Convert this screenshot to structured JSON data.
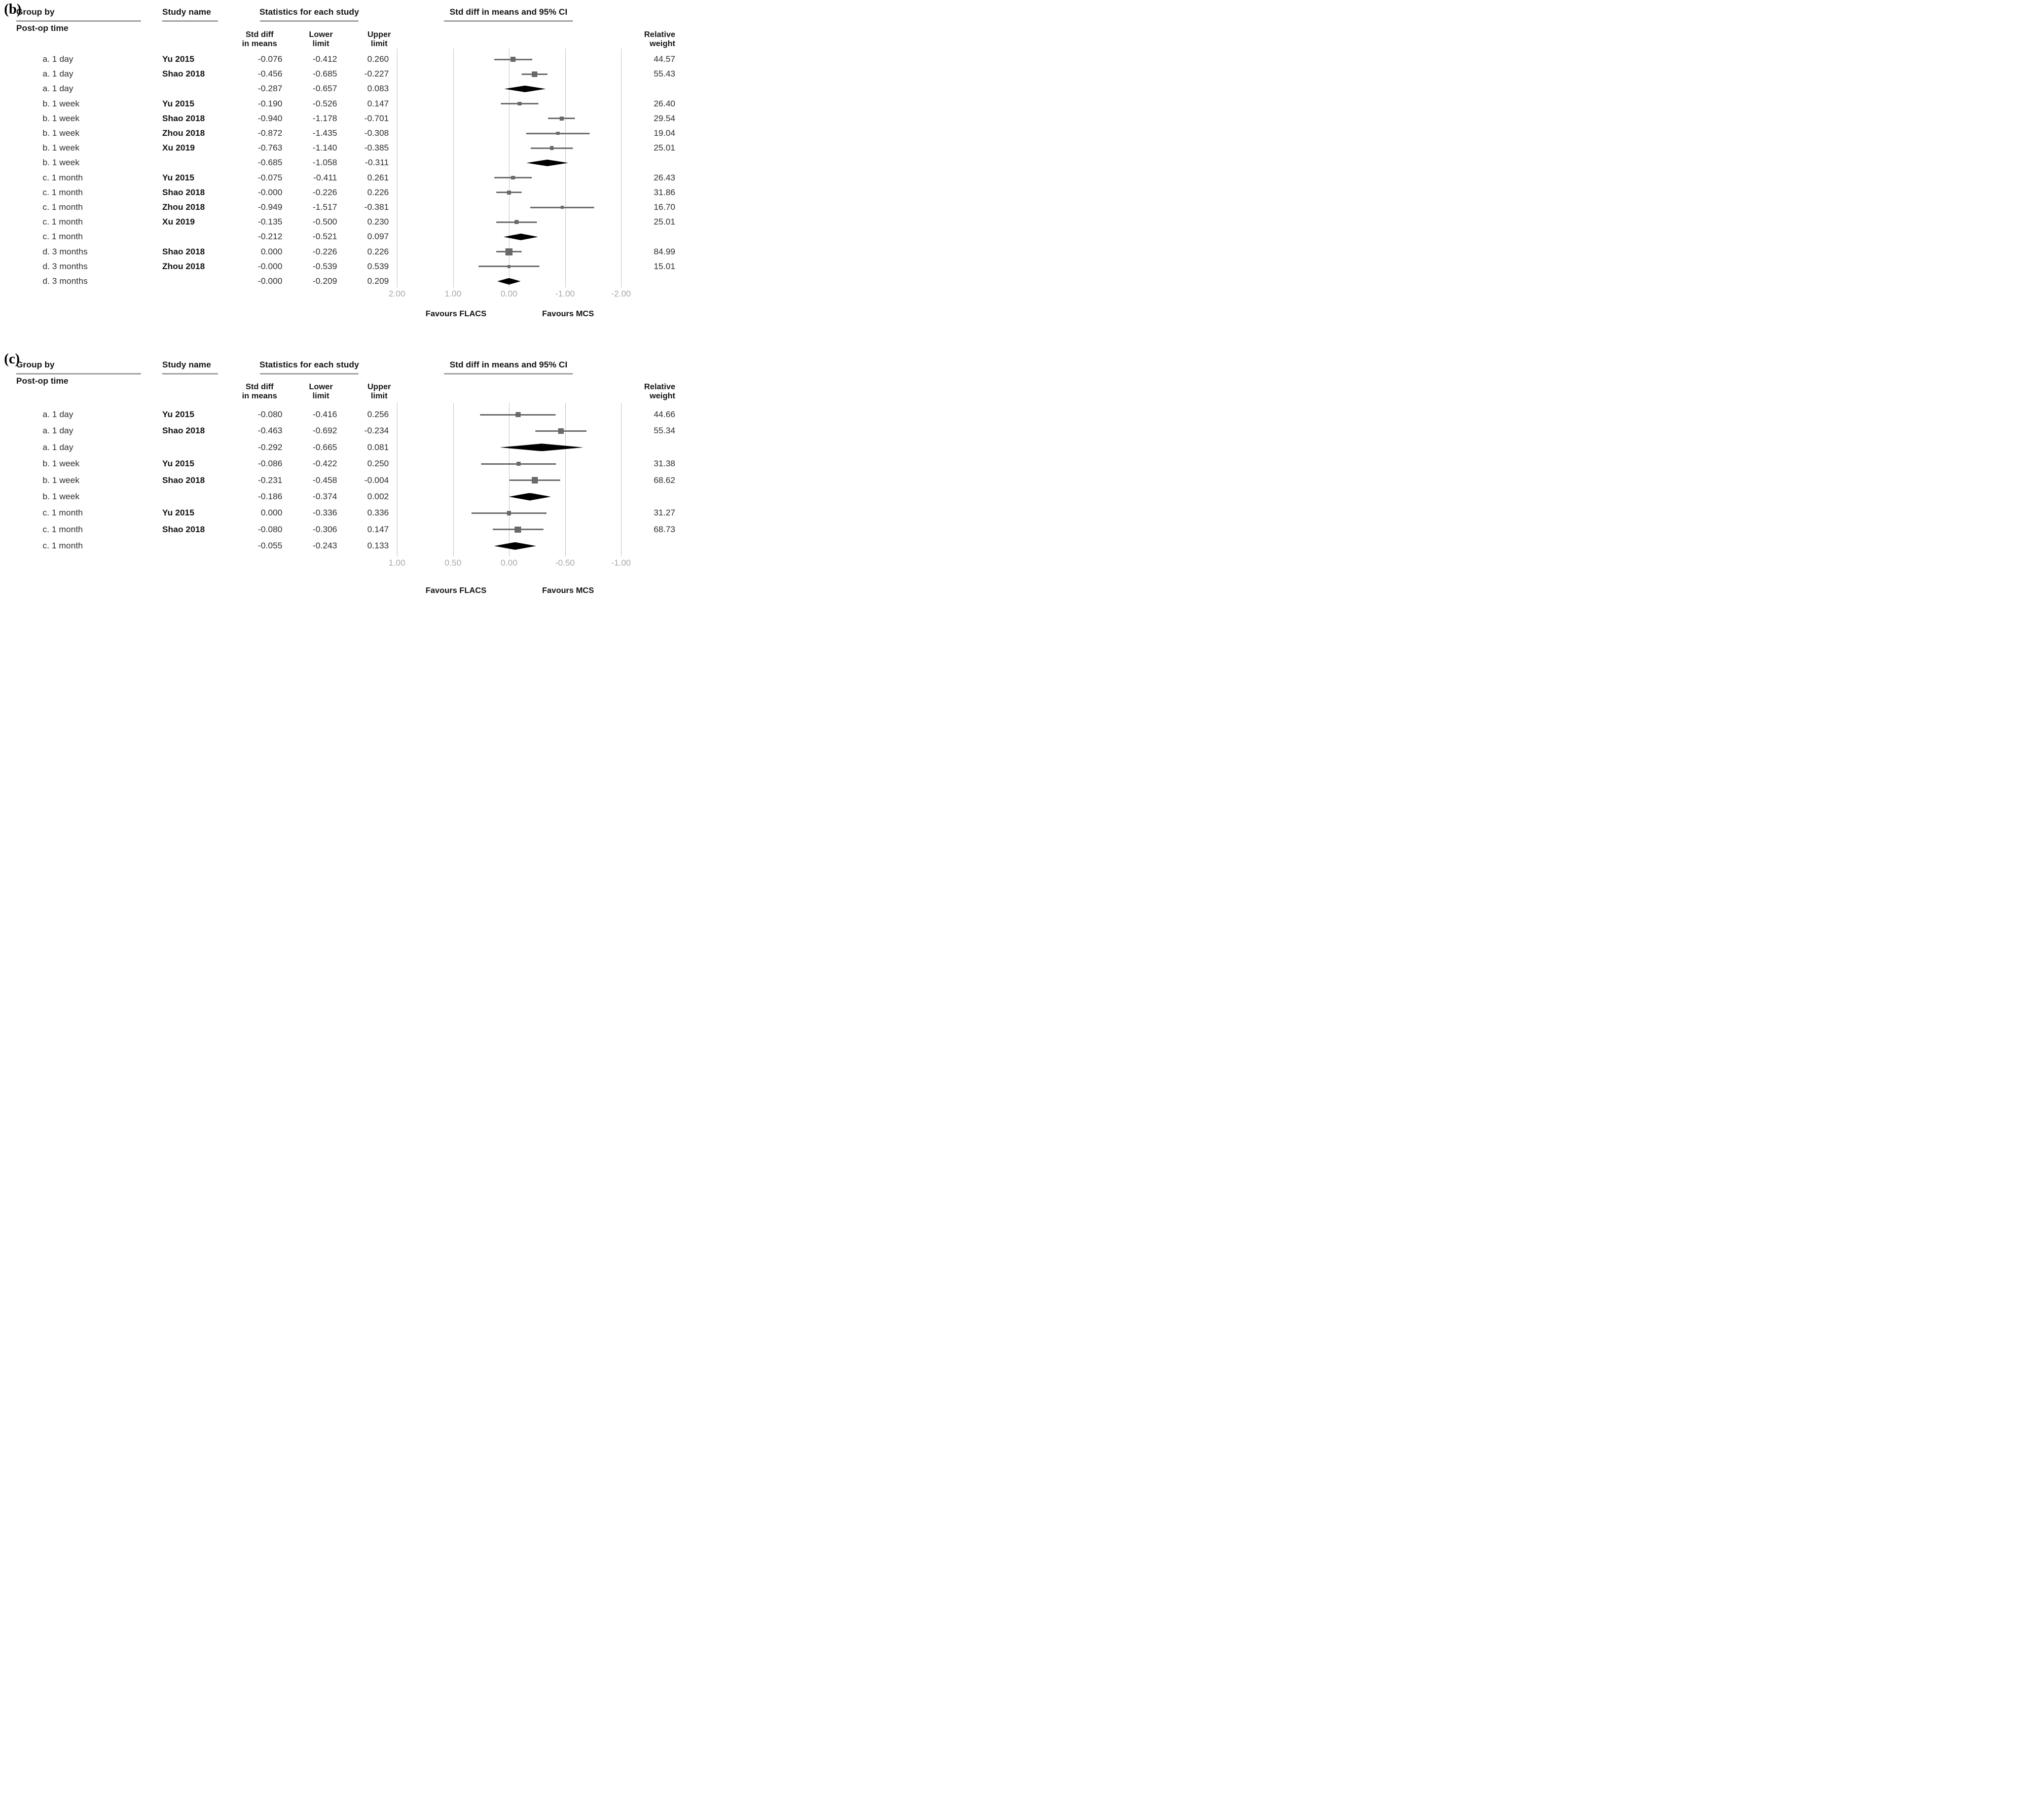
{
  "headers": {
    "group_by": "Group by",
    "group_by_sub": "Post-op time",
    "study_name": "Study name",
    "stats": "Statistics for each study",
    "std_diff_line1": "Std diff",
    "std_diff_line2": "in means",
    "lower_line1": "Lower",
    "lower_line2": "limit",
    "upper_line1": "Upper",
    "upper_line2": "limit",
    "ci": "Std diff in means and 95% CI",
    "weight_line1": "Relative",
    "weight_line2": "weight"
  },
  "panels": [
    {
      "id": "b",
      "label": "(b)",
      "axis": {
        "ticks": [
          "2.00",
          "1.00",
          "0.00",
          "-1.00",
          "-2.00"
        ],
        "favours_left": "Favours FLACS",
        "favours_right": "Favours MCS"
      },
      "rows": [
        {
          "group": "a. 1 day",
          "study": "Yu 2015",
          "std": "-0.076",
          "lower": "-0.412",
          "upper": "0.260",
          "weight": "44.57",
          "type": "study"
        },
        {
          "group": "a. 1 day",
          "study": "Shao 2018",
          "std": "-0.456",
          "lower": "-0.685",
          "upper": "-0.227",
          "weight": "55.43",
          "type": "study"
        },
        {
          "group": "a. 1 day",
          "study": "",
          "std": "-0.287",
          "lower": "-0.657",
          "upper": "0.083",
          "weight": "",
          "type": "summary"
        },
        {
          "group": "b. 1 week",
          "study": "Yu 2015",
          "std": "-0.190",
          "lower": "-0.526",
          "upper": "0.147",
          "weight": "26.40",
          "type": "study"
        },
        {
          "group": "b. 1 week",
          "study": "Shao 2018",
          "std": "-0.940",
          "lower": "-1.178",
          "upper": "-0.701",
          "weight": "29.54",
          "type": "study"
        },
        {
          "group": "b. 1 week",
          "study": "Zhou 2018",
          "std": "-0.872",
          "lower": "-1.435",
          "upper": "-0.308",
          "weight": "19.04",
          "type": "study"
        },
        {
          "group": "b. 1 week",
          "study": "Xu 2019",
          "std": "-0.763",
          "lower": "-1.140",
          "upper": "-0.385",
          "weight": "25.01",
          "type": "study"
        },
        {
          "group": "b. 1 week",
          "study": "",
          "std": "-0.685",
          "lower": "-1.058",
          "upper": "-0.311",
          "weight": "",
          "type": "summary"
        },
        {
          "group": "c. 1 month",
          "study": "Yu 2015",
          "std": "-0.075",
          "lower": "-0.411",
          "upper": "0.261",
          "weight": "26.43",
          "type": "study"
        },
        {
          "group": "c. 1 month",
          "study": "Shao 2018",
          "std": "-0.000",
          "lower": "-0.226",
          "upper": "0.226",
          "weight": "31.86",
          "type": "study"
        },
        {
          "group": "c. 1 month",
          "study": "Zhou 2018",
          "std": "-0.949",
          "lower": "-1.517",
          "upper": "-0.381",
          "weight": "16.70",
          "type": "study"
        },
        {
          "group": "c. 1 month",
          "study": "Xu 2019",
          "std": "-0.135",
          "lower": "-0.500",
          "upper": "0.230",
          "weight": "25.01",
          "type": "study"
        },
        {
          "group": "c. 1 month",
          "study": "",
          "std": "-0.212",
          "lower": "-0.521",
          "upper": "0.097",
          "weight": "",
          "type": "summary"
        },
        {
          "group": "d. 3 months",
          "study": "Shao 2018",
          "std": "0.000",
          "lower": "-0.226",
          "upper": "0.226",
          "weight": "84.99",
          "type": "study"
        },
        {
          "group": "d. 3 months",
          "study": "Zhou 2018",
          "std": "-0.000",
          "lower": "-0.539",
          "upper": "0.539",
          "weight": "15.01",
          "type": "study"
        },
        {
          "group": "d. 3 months",
          "study": "",
          "std": "-0.000",
          "lower": "-0.209",
          "upper": "0.209",
          "weight": "",
          "type": "summary"
        }
      ]
    },
    {
      "id": "c",
      "label": "(c)",
      "axis": {
        "ticks": [
          "1.00",
          "0.50",
          "0.00",
          "-0.50",
          "-1.00"
        ],
        "favours_left": "Favours FLACS",
        "favours_right": "Favours MCS"
      },
      "rows": [
        {
          "group": "a. 1 day",
          "study": "Yu 2015",
          "std": "-0.080",
          "lower": "-0.416",
          "upper": "0.256",
          "weight": "44.66",
          "type": "study"
        },
        {
          "group": "a. 1 day",
          "study": "Shao 2018",
          "std": "-0.463",
          "lower": "-0.692",
          "upper": "-0.234",
          "weight": "55.34",
          "type": "study"
        },
        {
          "group": "a. 1 day",
          "study": "",
          "std": "-0.292",
          "lower": "-0.665",
          "upper": "0.081",
          "weight": "",
          "type": "summary"
        },
        {
          "group": "b. 1 week",
          "study": "Yu 2015",
          "std": "-0.086",
          "lower": "-0.422",
          "upper": "0.250",
          "weight": "31.38",
          "type": "study"
        },
        {
          "group": "b. 1 week",
          "study": "Shao 2018",
          "std": "-0.231",
          "lower": "-0.458",
          "upper": "-0.004",
          "weight": "68.62",
          "type": "study"
        },
        {
          "group": "b. 1 week",
          "study": "",
          "std": "-0.186",
          "lower": "-0.374",
          "upper": "0.002",
          "weight": "",
          "type": "summary"
        },
        {
          "group": "c. 1 month",
          "study": "Yu 2015",
          "std": "0.000",
          "lower": "-0.336",
          "upper": "0.336",
          "weight": "31.27",
          "type": "study"
        },
        {
          "group": "c. 1 month",
          "study": "Shao 2018",
          "std": "-0.080",
          "lower": "-0.306",
          "upper": "0.147",
          "weight": "68.73",
          "type": "study"
        },
        {
          "group": "c. 1 month",
          "study": "",
          "std": "-0.055",
          "lower": "-0.243",
          "upper": "0.133",
          "weight": "",
          "type": "summary"
        }
      ]
    }
  ],
  "chart_data": [
    {
      "type": "scatter",
      "subtype": "forest-plot",
      "title": "Std diff in means and 95% CI",
      "group_by": "Post-op time",
      "x_axis_reversed": true,
      "xlim": [
        2.0,
        -2.0
      ],
      "x_ticks": [
        2.0,
        1.0,
        0.0,
        -1.0,
        -2.0
      ],
      "favours": {
        "left": "Favours FLACS",
        "right": "Favours MCS"
      },
      "series": [
        {
          "group": "a. 1 day",
          "study": "Yu 2015",
          "std_diff": -0.076,
          "lower": -0.412,
          "upper": 0.26,
          "relative_weight": 44.57,
          "summary": false
        },
        {
          "group": "a. 1 day",
          "study": "Shao 2018",
          "std_diff": -0.456,
          "lower": -0.685,
          "upper": -0.227,
          "relative_weight": 55.43,
          "summary": false
        },
        {
          "group": "a. 1 day",
          "study": null,
          "std_diff": -0.287,
          "lower": -0.657,
          "upper": 0.083,
          "relative_weight": null,
          "summary": true
        },
        {
          "group": "b. 1 week",
          "study": "Yu 2015",
          "std_diff": -0.19,
          "lower": -0.526,
          "upper": 0.147,
          "relative_weight": 26.4,
          "summary": false
        },
        {
          "group": "b. 1 week",
          "study": "Shao 2018",
          "std_diff": -0.94,
          "lower": -1.178,
          "upper": -0.701,
          "relative_weight": 29.54,
          "summary": false
        },
        {
          "group": "b. 1 week",
          "study": "Zhou 2018",
          "std_diff": -0.872,
          "lower": -1.435,
          "upper": -0.308,
          "relative_weight": 19.04,
          "summary": false
        },
        {
          "group": "b. 1 week",
          "study": "Xu 2019",
          "std_diff": -0.763,
          "lower": -1.14,
          "upper": -0.385,
          "relative_weight": 25.01,
          "summary": false
        },
        {
          "group": "b. 1 week",
          "study": null,
          "std_diff": -0.685,
          "lower": -1.058,
          "upper": -0.311,
          "relative_weight": null,
          "summary": true
        },
        {
          "group": "c. 1 month",
          "study": "Yu 2015",
          "std_diff": -0.075,
          "lower": -0.411,
          "upper": 0.261,
          "relative_weight": 26.43,
          "summary": false
        },
        {
          "group": "c. 1 month",
          "study": "Shao 2018",
          "std_diff": -0.0,
          "lower": -0.226,
          "upper": 0.226,
          "relative_weight": 31.86,
          "summary": false
        },
        {
          "group": "c. 1 month",
          "study": "Zhou 2018",
          "std_diff": -0.949,
          "lower": -1.517,
          "upper": -0.381,
          "relative_weight": 16.7,
          "summary": false
        },
        {
          "group": "c. 1 month",
          "study": "Xu 2019",
          "std_diff": -0.135,
          "lower": -0.5,
          "upper": 0.23,
          "relative_weight": 25.01,
          "summary": false
        },
        {
          "group": "c. 1 month",
          "study": null,
          "std_diff": -0.212,
          "lower": -0.521,
          "upper": 0.097,
          "relative_weight": null,
          "summary": true
        },
        {
          "group": "d. 3 months",
          "study": "Shao 2018",
          "std_diff": 0.0,
          "lower": -0.226,
          "upper": 0.226,
          "relative_weight": 84.99,
          "summary": false
        },
        {
          "group": "d. 3 months",
          "study": "Zhou 2018",
          "std_diff": -0.0,
          "lower": -0.539,
          "upper": 0.539,
          "relative_weight": 15.01,
          "summary": false
        },
        {
          "group": "d. 3 months",
          "study": null,
          "std_diff": -0.0,
          "lower": -0.209,
          "upper": 0.209,
          "relative_weight": null,
          "summary": true
        }
      ]
    },
    {
      "type": "scatter",
      "subtype": "forest-plot",
      "title": "Std diff in means and 95% CI",
      "group_by": "Post-op time",
      "x_axis_reversed": true,
      "xlim": [
        1.0,
        -1.0
      ],
      "x_ticks": [
        1.0,
        0.5,
        0.0,
        -0.5,
        -1.0
      ],
      "favours": {
        "left": "Favours FLACS",
        "right": "Favours MCS"
      },
      "series": [
        {
          "group": "a. 1 day",
          "study": "Yu 2015",
          "std_diff": -0.08,
          "lower": -0.416,
          "upper": 0.256,
          "relative_weight": 44.66,
          "summary": false
        },
        {
          "group": "a. 1 day",
          "study": "Shao 2018",
          "std_diff": -0.463,
          "lower": -0.692,
          "upper": -0.234,
          "relative_weight": 55.34,
          "summary": false
        },
        {
          "group": "a. 1 day",
          "study": null,
          "std_diff": -0.292,
          "lower": -0.665,
          "upper": 0.081,
          "relative_weight": null,
          "summary": true
        },
        {
          "group": "b. 1 week",
          "study": "Yu 2015",
          "std_diff": -0.086,
          "lower": -0.422,
          "upper": 0.25,
          "relative_weight": 31.38,
          "summary": false
        },
        {
          "group": "b. 1 week",
          "study": "Shao 2018",
          "std_diff": -0.231,
          "lower": -0.458,
          "upper": -0.004,
          "relative_weight": 68.62,
          "summary": false
        },
        {
          "group": "b. 1 week",
          "study": null,
          "std_diff": -0.186,
          "lower": -0.374,
          "upper": 0.002,
          "relative_weight": null,
          "summary": true
        },
        {
          "group": "c. 1 month",
          "study": "Yu 2015",
          "std_diff": 0.0,
          "lower": -0.336,
          "upper": 0.336,
          "relative_weight": 31.27,
          "summary": false
        },
        {
          "group": "c. 1 month",
          "study": "Shao 2018",
          "std_diff": -0.08,
          "lower": -0.306,
          "upper": 0.147,
          "relative_weight": 68.73,
          "summary": false
        },
        {
          "group": "c. 1 month",
          "study": null,
          "std_diff": -0.055,
          "lower": -0.243,
          "upper": 0.133,
          "relative_weight": null,
          "summary": true
        }
      ]
    }
  ]
}
